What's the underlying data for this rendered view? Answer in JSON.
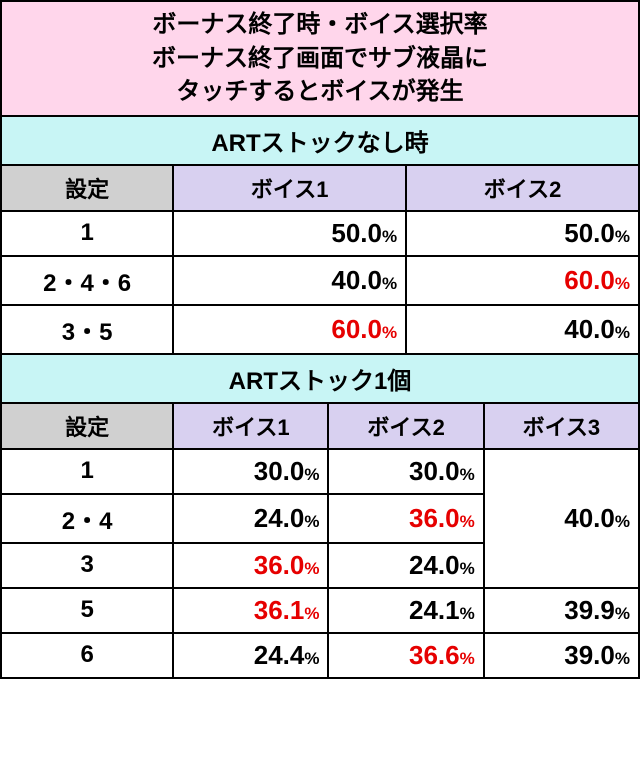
{
  "title": "ボーナス終了時・ボイス選択率\nボーナス終了画面でサブ液晶に\nタッチするとボイスが発生",
  "section1": {
    "header": "ARTストックなし時",
    "setting_label": "設定",
    "voice_labels": [
      "ボイス1",
      "ボイス2"
    ],
    "rows": [
      {
        "setting": "1",
        "values": [
          "50.0",
          "50.0"
        ],
        "red": [
          false,
          false
        ]
      },
      {
        "setting": "2・4・6",
        "values": [
          "40.0",
          "60.0"
        ],
        "red": [
          false,
          true
        ]
      },
      {
        "setting": "3・5",
        "values": [
          "60.0",
          "40.0"
        ],
        "red": [
          true,
          false
        ]
      }
    ]
  },
  "section2": {
    "header": "ARTストック1個",
    "setting_label": "設定",
    "voice_labels": [
      "ボイス1",
      "ボイス2",
      "ボイス3"
    ],
    "rows": [
      {
        "setting": "1",
        "values": [
          "30.0",
          "30.0",
          null
        ],
        "red": [
          false,
          false,
          false
        ]
      },
      {
        "setting": "2・4",
        "values": [
          "24.0",
          "36.0",
          null
        ],
        "red": [
          false,
          true,
          false
        ]
      },
      {
        "setting": "3",
        "values": [
          "36.0",
          "24.0",
          null
        ],
        "red": [
          true,
          false,
          false
        ]
      },
      {
        "setting": "5",
        "values": [
          "36.1",
          "24.1",
          "39.9"
        ],
        "red": [
          true,
          false,
          false
        ]
      },
      {
        "setting": "6",
        "values": [
          "24.4",
          "36.6",
          "39.0"
        ],
        "red": [
          false,
          true,
          false
        ]
      }
    ],
    "merged_voice3": {
      "value": "40.0",
      "rowspan": 3,
      "red": false
    }
  },
  "percent_suffix": "%",
  "colors": {
    "title_bg": "#ffd6eb",
    "section_bg": "#c8f5f5",
    "header_bg": "#d0d0d0",
    "voice_header_bg": "#d8d0f0",
    "red_text": "#e60000",
    "border": "#000000"
  }
}
